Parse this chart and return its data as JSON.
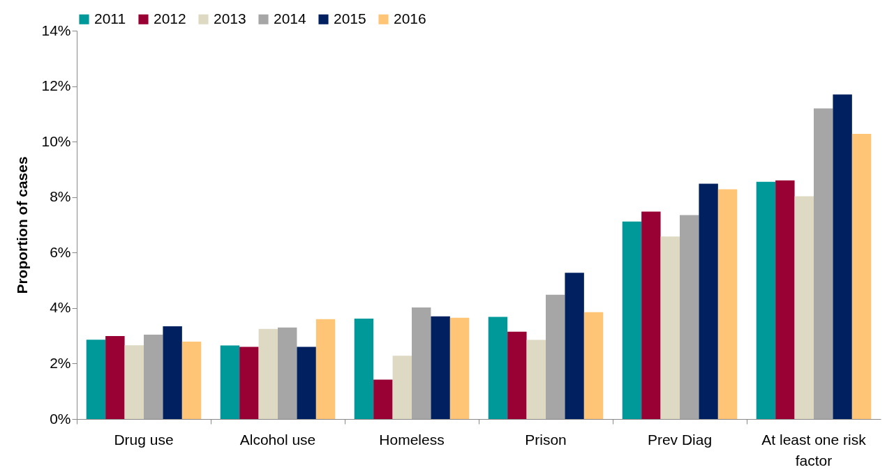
{
  "chart_data": {
    "type": "bar",
    "ylabel": "Proportion of cases",
    "categories": [
      "Drug use",
      "Alcohol use",
      "Homeless",
      "Prison",
      "Prev Diag",
      "At least one risk factor"
    ],
    "series": [
      {
        "name": "2011",
        "color": "#009999",
        "values": [
          2.86,
          2.65,
          3.62,
          3.68,
          7.12,
          8.55
        ]
      },
      {
        "name": "2012",
        "color": "#990033",
        "values": [
          2.99,
          2.6,
          1.42,
          3.15,
          7.48,
          8.6
        ]
      },
      {
        "name": "2013",
        "color": "#ddd9c3",
        "values": [
          2.66,
          3.25,
          2.28,
          2.85,
          6.58,
          8.03
        ]
      },
      {
        "name": "2014",
        "color": "#a6a6a6",
        "values": [
          3.04,
          3.3,
          4.02,
          4.48,
          7.35,
          11.2
        ]
      },
      {
        "name": "2015",
        "color": "#002060",
        "values": [
          3.34,
          2.6,
          3.7,
          5.27,
          8.48,
          11.7
        ]
      },
      {
        "name": "2016",
        "color": "#ffc577",
        "values": [
          2.79,
          3.6,
          3.65,
          3.85,
          8.28,
          10.28
        ]
      }
    ],
    "ylim": [
      0,
      14
    ],
    "yticks": [
      {
        "value": 0,
        "label": "0%"
      },
      {
        "value": 2,
        "label": "2%"
      },
      {
        "value": 4,
        "label": "4%"
      },
      {
        "value": 6,
        "label": "6%"
      },
      {
        "value": 8,
        "label": "8%"
      },
      {
        "value": 10,
        "label": "10%"
      },
      {
        "value": 12,
        "label": "12%"
      },
      {
        "value": 14,
        "label": "14%"
      }
    ],
    "grid": false,
    "legend": "top"
  }
}
